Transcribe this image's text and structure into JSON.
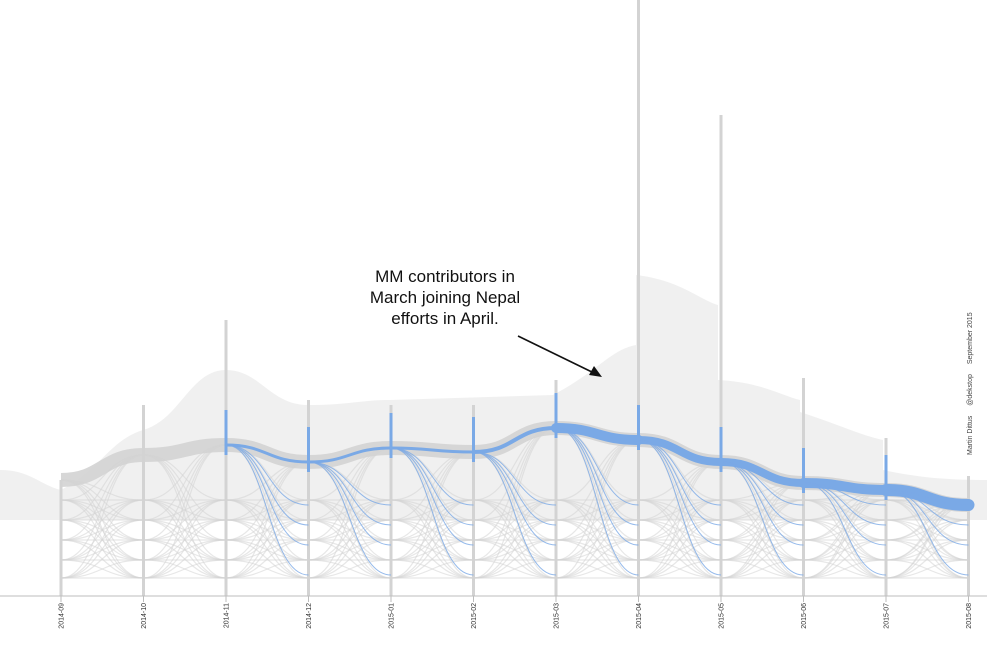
{
  "chart_data": {
    "type": "alluvial",
    "x": [
      "2014-09",
      "2014-10",
      "2014-11",
      "2014-12",
      "2015-01",
      "2015-02",
      "2015-03",
      "2015-04",
      "2015-05",
      "2015-06",
      "2015-07",
      "2015-08"
    ],
    "highlight_series": {
      "color": "#7aa9e6",
      "flows": [
        {
          "from": "2014-11",
          "to": "2014-12",
          "weight": 3
        },
        {
          "from": "2014-12",
          "to": "2015-01",
          "weight": 3
        },
        {
          "from": "2015-01",
          "to": "2015-02",
          "weight": 3
        },
        {
          "from": "2015-02",
          "to": "2015-03",
          "weight": 4
        },
        {
          "from": "2015-03",
          "to": "2015-04",
          "weight": 10
        },
        {
          "from": "2015-04",
          "to": "2015-05",
          "weight": 8
        },
        {
          "from": "2015-05",
          "to": "2015-06",
          "weight": 8
        },
        {
          "from": "2015-06",
          "to": "2015-07",
          "weight": 10
        },
        {
          "from": "2015-07",
          "to": "2015-08",
          "weight": 12
        }
      ]
    },
    "background_color": "#d3d3d3",
    "grid": false
  },
  "annotation": {
    "lines": [
      "MM contributors in",
      "March joining Nepal",
      "efforts in April."
    ]
  },
  "credit": {
    "author": "Martin Dittus",
    "handle": "@dekstop",
    "date": "September 2015"
  }
}
